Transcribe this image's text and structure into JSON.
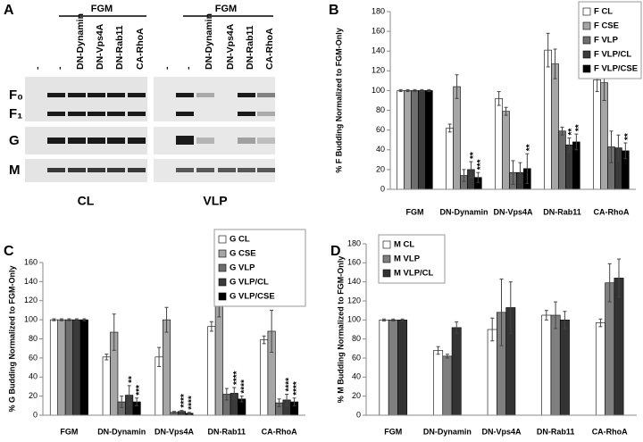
{
  "figure": {
    "panel_a": {
      "letter": "A",
      "group_label_cl": "FGM",
      "group_label_vlp": "FGM",
      "lanes_cl": [
        "-",
        "-",
        "DN-Dynamin",
        "DN-Vps4A",
        "DN-Rab11",
        "CA-RhoA"
      ],
      "lanes_vlp": [
        "-",
        "-",
        "DN-Dynamin",
        "DN-Vps4A",
        "DN-Rab11",
        "CA-RhoA"
      ],
      "rows": [
        "F₀",
        "F₁",
        "G",
        "M"
      ],
      "blot_cl": "CL",
      "blot_vlp": "VLP"
    }
  },
  "chart_data": [
    {
      "type": "bar",
      "panel_label": "B",
      "ylabel": "% F Budding Normalized to FGM-Only",
      "categories": [
        "FGM",
        "DN-Dynamin",
        "DN-Vps4A",
        "DN-Rab11",
        "CA-RhoA"
      ],
      "ylim": [
        0,
        180
      ],
      "yticks": [
        0,
        20,
        40,
        60,
        80,
        100,
        120,
        140,
        160,
        180
      ],
      "legend": "upper right",
      "series": [
        {
          "name": "F CL",
          "color": "#ffffff",
          "values": [
            100,
            62,
            92,
            141,
            111
          ],
          "errors": [
            1,
            4,
            7,
            17,
            12
          ],
          "significance": [
            null,
            null,
            null,
            null,
            null
          ]
        },
        {
          "name": "F CSE",
          "color": "#a6a6a6",
          "values": [
            100,
            104,
            79,
            127,
            108
          ],
          "errors": [
            1,
            12,
            4,
            15,
            18
          ],
          "significance": [
            null,
            null,
            null,
            null,
            null
          ]
        },
        {
          "name": "F VLP",
          "color": "#6e6e6e",
          "values": [
            100,
            14,
            17,
            59,
            43
          ],
          "errors": [
            1,
            6,
            12,
            4,
            16
          ],
          "significance": [
            null,
            null,
            null,
            null,
            null
          ]
        },
        {
          "name": "F VLP/CL",
          "color": "#3a3a3a",
          "values": [
            100,
            20,
            17,
            45,
            42
          ],
          "errors": [
            1,
            8,
            10,
            7,
            13
          ],
          "significance": [
            null,
            "**",
            null,
            "**",
            null
          ]
        },
        {
          "name": "F VLP/CSE",
          "color": "#000000",
          "values": [
            100,
            12,
            21,
            48,
            39
          ],
          "errors": [
            1,
            5,
            15,
            8,
            8
          ],
          "significance": [
            null,
            "***",
            "**",
            "**",
            "**"
          ]
        }
      ]
    },
    {
      "type": "bar",
      "panel_label": "C",
      "ylabel": "% G Budding Normalized to FGM-Only",
      "categories": [
        "FGM",
        "DN-Dynamin",
        "DN-Vps4A",
        "DN-Rab11",
        "CA-RhoA"
      ],
      "ylim": [
        0,
        160
      ],
      "yticks": [
        0,
        20,
        40,
        60,
        80,
        100,
        120,
        140,
        160
      ],
      "legend": "upper right",
      "series": [
        {
          "name": "G CL",
          "color": "#ffffff",
          "values": [
            100,
            61,
            61,
            93,
            79
          ],
          "errors": [
            1,
            3,
            10,
            5,
            4
          ],
          "significance": [
            null,
            null,
            null,
            null,
            null
          ]
        },
        {
          "name": "G CSE",
          "color": "#a6a6a6",
          "values": [
            100,
            87,
            100,
            125,
            88
          ],
          "errors": [
            1,
            19,
            13,
            22,
            22
          ],
          "significance": [
            null,
            null,
            null,
            null,
            null
          ]
        },
        {
          "name": "G VLP",
          "color": "#6e6e6e",
          "values": [
            100,
            14,
            3,
            22,
            13
          ],
          "errors": [
            1,
            6,
            1,
            6,
            4
          ],
          "significance": [
            null,
            null,
            null,
            null,
            null
          ]
        },
        {
          "name": "G VLP/CL",
          "color": "#3a3a3a",
          "values": [
            100,
            21,
            4,
            23,
            16
          ],
          "errors": [
            1,
            10,
            1,
            6,
            6
          ],
          "significance": [
            null,
            "**",
            "****",
            "****",
            "****"
          ]
        },
        {
          "name": "G VLP/CSE",
          "color": "#000000",
          "values": [
            100,
            14,
            2,
            17,
            14
          ],
          "errors": [
            1,
            4,
            1,
            3,
            4
          ],
          "significance": [
            null,
            "***",
            "****",
            "****",
            "****"
          ]
        }
      ]
    },
    {
      "type": "bar",
      "panel_label": "D",
      "ylabel": "% M Budding Normalized to FGM-Only",
      "categories": [
        "FGM",
        "DN-Dynamin",
        "DN-Vps4A",
        "DN-Rab11",
        "CA-RhoA"
      ],
      "ylim": [
        0,
        180
      ],
      "yticks": [
        0,
        20,
        40,
        60,
        80,
        100,
        120,
        140,
        160,
        180
      ],
      "legend": "upper left",
      "series": [
        {
          "name": "M CL",
          "color": "#ffffff",
          "values": [
            100,
            68,
            90,
            105,
            97
          ],
          "errors": [
            1,
            4,
            12,
            5,
            4
          ]
        },
        {
          "name": "M VLP",
          "color": "#7f7f7f",
          "values": [
            100,
            62,
            108,
            105,
            139
          ],
          "errors": [
            1,
            2,
            35,
            14,
            20
          ]
        },
        {
          "name": "M VLP/CL",
          "color": "#333333",
          "values": [
            100,
            92,
            113,
            100,
            144
          ],
          "errors": [
            1,
            6,
            27,
            9,
            20
          ]
        }
      ]
    }
  ]
}
